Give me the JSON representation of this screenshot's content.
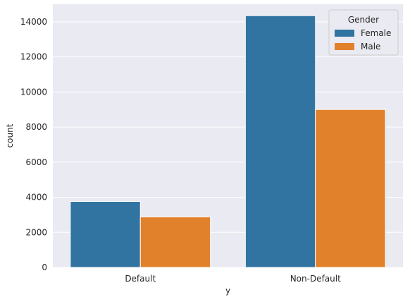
{
  "chart_data": {
    "type": "bar",
    "categories": [
      "Default",
      "Non-Default"
    ],
    "series": [
      {
        "name": "Female",
        "values": [
          3760,
          14350
        ],
        "color": "#3274a1"
      },
      {
        "name": "Male",
        "values": [
          2880,
          9000
        ],
        "color": "#e1812c"
      }
    ],
    "xlabel": "y",
    "ylabel": "count",
    "ylim": [
      0,
      15000
    ],
    "yticks": [
      0,
      2000,
      4000,
      6000,
      8000,
      10000,
      12000,
      14000
    ],
    "legend_title": "Gender",
    "legend_position": "top-right",
    "grid": true,
    "style": "seaborn-darkgrid"
  }
}
